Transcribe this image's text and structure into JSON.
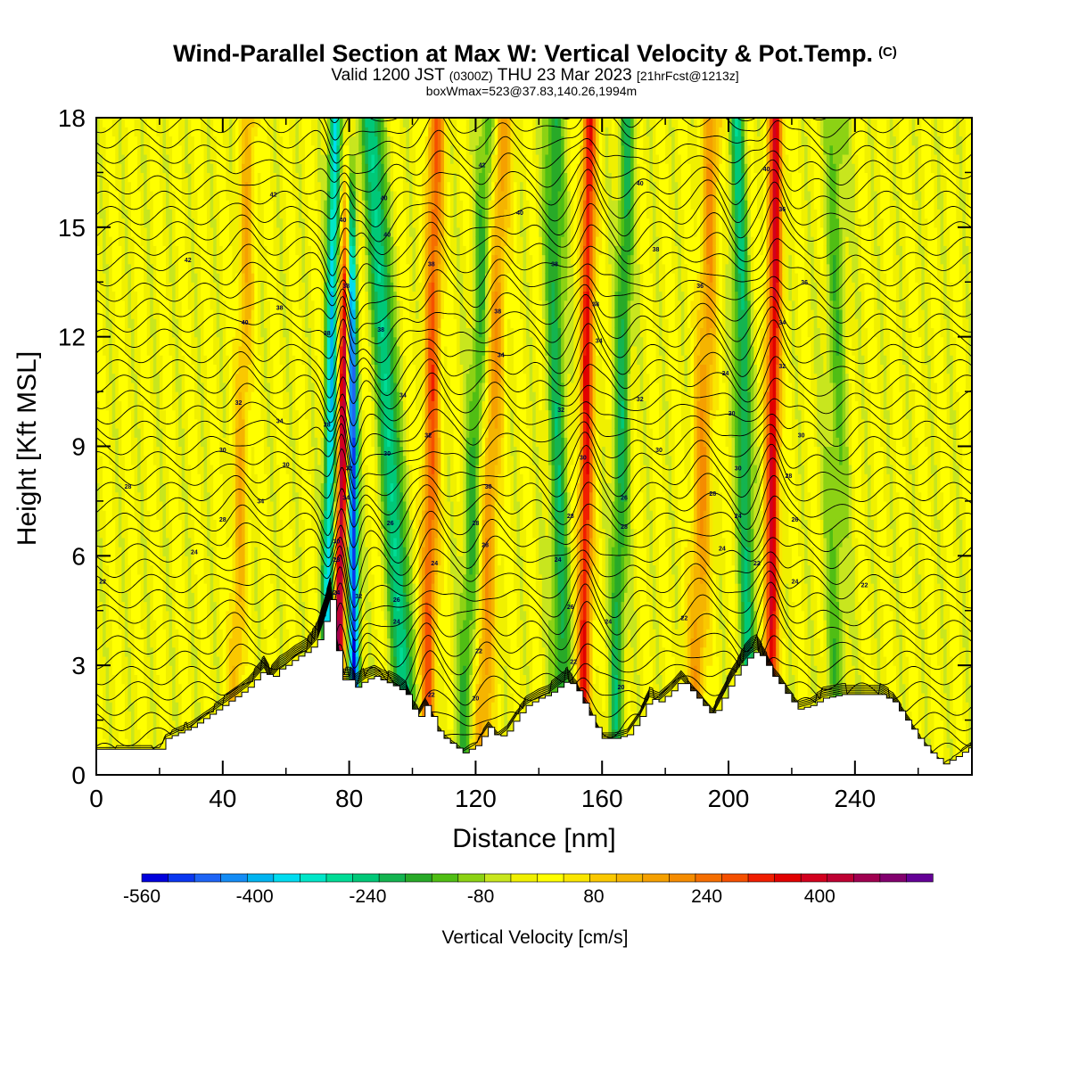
{
  "header": {
    "title": "Wind-Parallel Section at Max W: Vertical Velocity & Pot.Temp.",
    "copyright": "(C)",
    "valid_prefix": "Valid 1200 JST",
    "valid_zulu": "(0300Z)",
    "valid_date": "THU 23 Mar 2023",
    "forecast": "[21hrFcst@1213z]",
    "boxinfo": "boxWmax=523@37.83,140.26,1994m"
  },
  "chart_data": {
    "type": "heatmap",
    "xlabel": "Distance [nm]",
    "ylabel": "Height [Kft MSL]",
    "xlim": [
      0,
      277
    ],
    "ylim": [
      0,
      18
    ],
    "x_ticks": [
      0,
      40,
      80,
      120,
      160,
      200,
      240
    ],
    "y_ticks": [
      0,
      3,
      6,
      9,
      12,
      15,
      18
    ],
    "colorbar": {
      "label": "Vertical Velocity [cm/s]",
      "tick_values": [
        -560,
        -400,
        -240,
        -80,
        80,
        240,
        400
      ],
      "range": [
        -560,
        560
      ],
      "step": 40,
      "colors": [
        "#0000dc",
        "#0a37f0",
        "#1e64f5",
        "#148cf5",
        "#00b4f0",
        "#00dcf0",
        "#00e6c8",
        "#00dc96",
        "#00c878",
        "#14b450",
        "#28aa28",
        "#50be14",
        "#8cd214",
        "#c8e61e",
        "#f0f000",
        "#ffff00",
        "#fae600",
        "#fac800",
        "#f5b400",
        "#f5a000",
        "#f58c00",
        "#f56e00",
        "#f55000",
        "#f01e00",
        "#e10000",
        "#d2001e",
        "#be0032",
        "#a00050",
        "#82006e",
        "#640096"
      ]
    },
    "terrain_kft": [
      [
        0,
        0.7
      ],
      [
        10,
        0.7
      ],
      [
        20,
        0.7
      ],
      [
        22,
        1.0
      ],
      [
        30,
        1.3
      ],
      [
        35,
        1.6
      ],
      [
        40,
        1.9
      ],
      [
        45,
        2.2
      ],
      [
        48,
        2.4
      ],
      [
        50,
        2.6
      ],
      [
        53,
        2.9
      ],
      [
        55,
        2.6
      ],
      [
        58,
        2.9
      ],
      [
        60,
        3.0
      ],
      [
        63,
        3.2
      ],
      [
        67,
        3.4
      ],
      [
        70,
        3.7
      ],
      [
        72,
        4.2
      ],
      [
        74,
        4.8
      ],
      [
        76,
        3.4
      ],
      [
        78,
        2.6
      ],
      [
        80,
        2.6
      ],
      [
        82,
        2.4
      ],
      [
        85,
        2.6
      ],
      [
        88,
        2.7
      ],
      [
        90,
        2.6
      ],
      [
        95,
        2.4
      ],
      [
        98,
        2.2
      ],
      [
        100,
        1.8
      ],
      [
        102,
        1.6
      ],
      [
        104,
        1.9
      ],
      [
        106,
        1.6
      ],
      [
        108,
        1.2
      ],
      [
        110,
        1.0
      ],
      [
        113,
        0.8
      ],
      [
        116,
        0.6
      ],
      [
        120,
        0.8
      ],
      [
        124,
        1.3
      ],
      [
        127,
        1.0
      ],
      [
        130,
        1.2
      ],
      [
        133,
        1.6
      ],
      [
        136,
        1.9
      ],
      [
        140,
        2.1
      ],
      [
        143,
        2.2
      ],
      [
        146,
        2.4
      ],
      [
        149,
        2.6
      ],
      [
        152,
        2.3
      ],
      [
        155,
        1.8
      ],
      [
        158,
        1.3
      ],
      [
        160,
        1.0
      ],
      [
        164,
        1.0
      ],
      [
        168,
        1.1
      ],
      [
        172,
        1.6
      ],
      [
        175,
        2.1
      ],
      [
        178,
        2.0
      ],
      [
        182,
        2.3
      ],
      [
        185,
        2.6
      ],
      [
        188,
        2.3
      ],
      [
        191,
        2.0
      ],
      [
        195,
        1.6
      ],
      [
        198,
        2.1
      ],
      [
        201,
        2.6
      ],
      [
        204,
        3.0
      ],
      [
        207,
        3.3
      ],
      [
        209,
        3.4
      ],
      [
        212,
        3.0
      ],
      [
        214,
        2.7
      ],
      [
        216,
        2.5
      ],
      [
        219,
        2.1
      ],
      [
        222,
        1.8
      ],
      [
        226,
        1.9
      ],
      [
        230,
        2.1
      ],
      [
        236,
        2.2
      ],
      [
        240,
        2.2
      ],
      [
        244,
        2.2
      ],
      [
        248,
        2.2
      ],
      [
        252,
        2.0
      ],
      [
        256,
        1.5
      ],
      [
        260,
        1.0
      ],
      [
        264,
        0.6
      ],
      [
        268,
        0.3
      ],
      [
        272,
        0.5
      ],
      [
        277,
        0.8
      ]
    ],
    "updrafts": [
      {
        "x": 46,
        "w": 2.5,
        "amp": 150,
        "tilt": 2.5
      },
      {
        "x": 74,
        "w": 1.8,
        "amp": -380,
        "tilt": 1.5
      },
      {
        "x": 78,
        "w": 1.6,
        "amp": 520,
        "tilt": 2.0
      },
      {
        "x": 81,
        "w": 1.6,
        "amp": -560,
        "tilt": -1.0
      },
      {
        "x": 93,
        "w": 3.0,
        "amp": -300,
        "tilt": -6.0
      },
      {
        "x": 106,
        "w": 2.5,
        "amp": 300,
        "tilt": 1.5
      },
      {
        "x": 120,
        "w": 3.0,
        "amp": -160,
        "tilt": 4.0
      },
      {
        "x": 125,
        "w": 3.0,
        "amp": 200,
        "tilt": 3.5
      },
      {
        "x": 146,
        "w": 3.0,
        "amp": -200,
        "tilt": -1.5
      },
      {
        "x": 155,
        "w": 2.2,
        "amp": 380,
        "tilt": 1.0
      },
      {
        "x": 166,
        "w": 2.5,
        "amp": -200,
        "tilt": 2.0
      },
      {
        "x": 192,
        "w": 3.0,
        "amp": 200,
        "tilt": 3.0
      },
      {
        "x": 205,
        "w": 2.5,
        "amp": -240,
        "tilt": -2.5
      },
      {
        "x": 214,
        "w": 2.2,
        "amp": 420,
        "tilt": 1.0
      },
      {
        "x": 234,
        "w": 3.5,
        "amp": -120,
        "tilt": 0.0
      }
    ],
    "theta_labels": [
      {
        "x": 2,
        "y": 5.3,
        "text": "22"
      },
      {
        "x": 10,
        "y": 7.9,
        "text": "28"
      },
      {
        "x": 31,
        "y": 6.1,
        "text": "24"
      },
      {
        "x": 40,
        "y": 7.0,
        "text": "28"
      },
      {
        "x": 40,
        "y": 8.9,
        "text": "30"
      },
      {
        "x": 45,
        "y": 10.2,
        "text": "32"
      },
      {
        "x": 29,
        "y": 14.1,
        "text": "42"
      },
      {
        "x": 47,
        "y": 12.4,
        "text": "40"
      },
      {
        "x": 52,
        "y": 7.5,
        "text": "34"
      },
      {
        "x": 58,
        "y": 9.7,
        "text": "34"
      },
      {
        "x": 60,
        "y": 8.5,
        "text": "30"
      },
      {
        "x": 56,
        "y": 15.9,
        "text": "42"
      },
      {
        "x": 58,
        "y": 12.8,
        "text": "38"
      },
      {
        "x": 73,
        "y": 12.1,
        "text": "38"
      },
      {
        "x": 73,
        "y": 9.6,
        "text": "28"
      },
      {
        "x": 76,
        "y": 5.0,
        "text": "24"
      },
      {
        "x": 76,
        "y": 5.9,
        "text": "28"
      },
      {
        "x": 76,
        "y": 6.4,
        "text": "30"
      },
      {
        "x": 79,
        "y": 7.6,
        "text": "34"
      },
      {
        "x": 80,
        "y": 8.4,
        "text": "32"
      },
      {
        "x": 79,
        "y": 13.4,
        "text": "38"
      },
      {
        "x": 78,
        "y": 15.2,
        "text": "40"
      },
      {
        "x": 83,
        "y": 4.9,
        "text": "32"
      },
      {
        "x": 90,
        "y": 12.2,
        "text": "38"
      },
      {
        "x": 91,
        "y": 15.8,
        "text": "40"
      },
      {
        "x": 92,
        "y": 14.8,
        "text": "40"
      },
      {
        "x": 92,
        "y": 8.8,
        "text": "30"
      },
      {
        "x": 93,
        "y": 6.9,
        "text": "26"
      },
      {
        "x": 95,
        "y": 4.2,
        "text": "24"
      },
      {
        "x": 95,
        "y": 4.8,
        "text": "26"
      },
      {
        "x": 97,
        "y": 10.4,
        "text": "34"
      },
      {
        "x": 106,
        "y": 14.0,
        "text": "38"
      },
      {
        "x": 105,
        "y": 9.3,
        "text": "32"
      },
      {
        "x": 107,
        "y": 5.8,
        "text": "24"
      },
      {
        "x": 106,
        "y": 2.2,
        "text": "22"
      },
      {
        "x": 120,
        "y": 6.9,
        "text": "28"
      },
      {
        "x": 121,
        "y": 3.4,
        "text": "22"
      },
      {
        "x": 120,
        "y": 2.1,
        "text": "20"
      },
      {
        "x": 123,
        "y": 6.3,
        "text": "28"
      },
      {
        "x": 124,
        "y": 7.9,
        "text": "30"
      },
      {
        "x": 122,
        "y": 16.7,
        "text": "42"
      },
      {
        "x": 127,
        "y": 12.7,
        "text": "38"
      },
      {
        "x": 128,
        "y": 11.5,
        "text": "34"
      },
      {
        "x": 134,
        "y": 15.4,
        "text": "40"
      },
      {
        "x": 145,
        "y": 14.0,
        "text": "38"
      },
      {
        "x": 146,
        "y": 5.9,
        "text": "24"
      },
      {
        "x": 147,
        "y": 10.0,
        "text": "32"
      },
      {
        "x": 150,
        "y": 7.1,
        "text": "28"
      },
      {
        "x": 150,
        "y": 4.6,
        "text": "26"
      },
      {
        "x": 151,
        "y": 3.1,
        "text": "22"
      },
      {
        "x": 154,
        "y": 8.7,
        "text": "30"
      },
      {
        "x": 158,
        "y": 12.9,
        "text": "38"
      },
      {
        "x": 159,
        "y": 11.9,
        "text": "34"
      },
      {
        "x": 162,
        "y": 4.2,
        "text": "24"
      },
      {
        "x": 166,
        "y": 2.4,
        "text": "20"
      },
      {
        "x": 167,
        "y": 7.6,
        "text": "26"
      },
      {
        "x": 167,
        "y": 6.8,
        "text": "28"
      },
      {
        "x": 172,
        "y": 10.3,
        "text": "32"
      },
      {
        "x": 172,
        "y": 16.2,
        "text": "40"
      },
      {
        "x": 177,
        "y": 14.4,
        "text": "38"
      },
      {
        "x": 178,
        "y": 8.9,
        "text": "30"
      },
      {
        "x": 186,
        "y": 4.3,
        "text": "22"
      },
      {
        "x": 191,
        "y": 13.4,
        "text": "36"
      },
      {
        "x": 195,
        "y": 7.7,
        "text": "28"
      },
      {
        "x": 198,
        "y": 6.2,
        "text": "24"
      },
      {
        "x": 199,
        "y": 11.0,
        "text": "34"
      },
      {
        "x": 201,
        "y": 9.9,
        "text": "30"
      },
      {
        "x": 203,
        "y": 8.4,
        "text": "30"
      },
      {
        "x": 203,
        "y": 7.1,
        "text": "24"
      },
      {
        "x": 209,
        "y": 5.8,
        "text": "22"
      },
      {
        "x": 212,
        "y": 16.6,
        "text": "40"
      },
      {
        "x": 217,
        "y": 15.5,
        "text": "36"
      },
      {
        "x": 217,
        "y": 12.4,
        "text": "34"
      },
      {
        "x": 217,
        "y": 11.2,
        "text": "32"
      },
      {
        "x": 219,
        "y": 8.2,
        "text": "28"
      },
      {
        "x": 221,
        "y": 7.0,
        "text": "26"
      },
      {
        "x": 221,
        "y": 5.3,
        "text": "24"
      },
      {
        "x": 223,
        "y": 9.3,
        "text": "30"
      },
      {
        "x": 224,
        "y": 13.5,
        "text": "36"
      },
      {
        "x": 243,
        "y": 5.2,
        "text": "22"
      }
    ]
  }
}
